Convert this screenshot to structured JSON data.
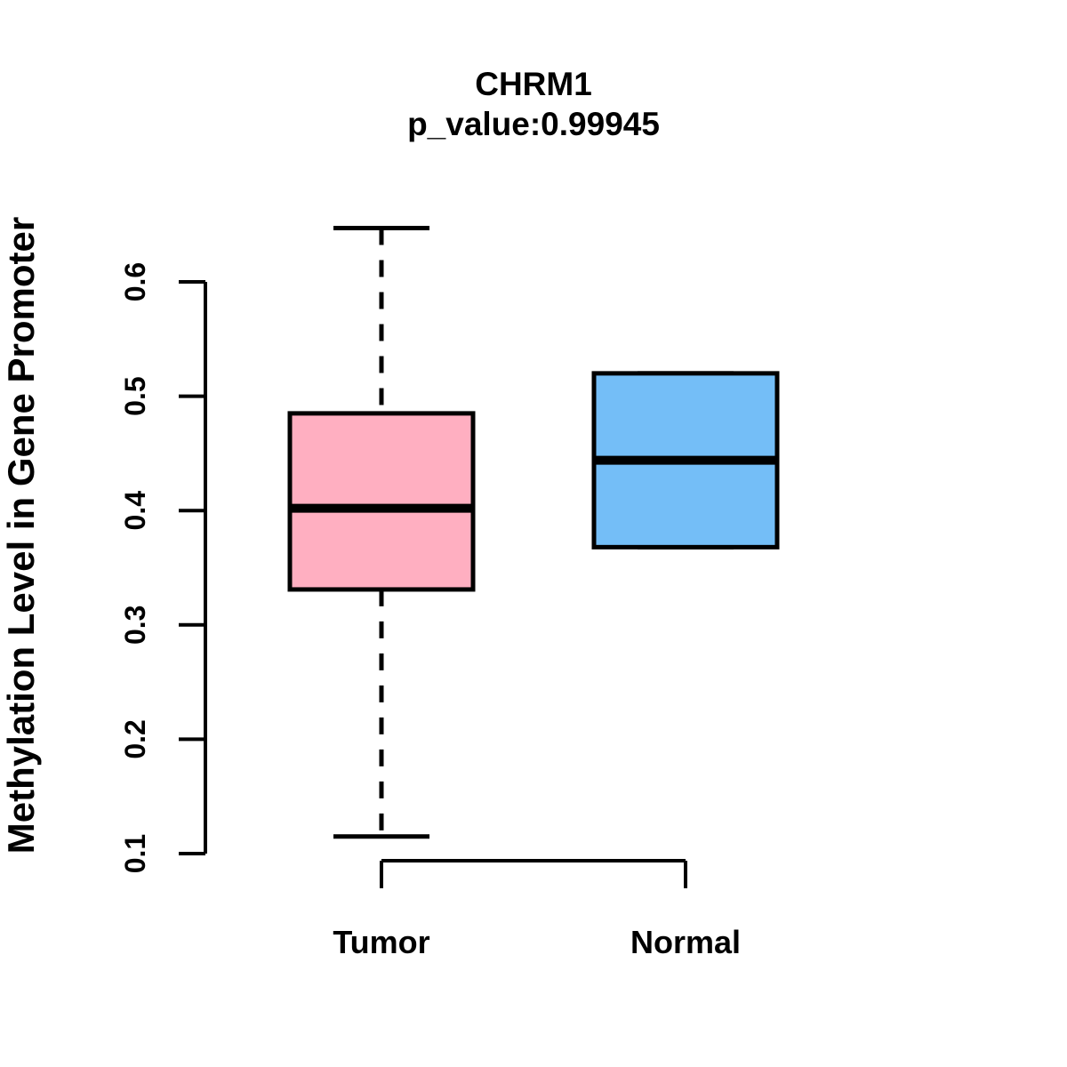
{
  "figure": {
    "background": "#FFFFFF",
    "line_color": "#000000"
  },
  "chart_data": {
    "type": "boxplot",
    "title": "CHRM1",
    "subtitle": "p_value:0.99945",
    "ylabel": "Methylation Level in Gene Promoter",
    "xlabel": "",
    "ylim": [
      0.1,
      0.6
    ],
    "yticks": [
      0.1,
      0.2,
      0.3,
      0.4,
      0.5,
      0.6
    ],
    "ytick_labels": [
      "0.1",
      "0.2",
      "0.3",
      "0.4",
      "0.5",
      "0.6"
    ],
    "categories": [
      "Tumor",
      "Normal"
    ],
    "grid": false,
    "legend": "none",
    "series": [
      {
        "name": "Tumor",
        "fill_color": "#FFAFC1",
        "border_color": "#000000",
        "whisker_low": 0.115,
        "q1": 0.331,
        "median": 0.402,
        "q3": 0.485,
        "whisker_high": 0.647,
        "whisker_style": "dashed"
      },
      {
        "name": "Normal",
        "fill_color": "#74BEF7",
        "border_color": "#000000",
        "whisker_low": 0.368,
        "q1": 0.368,
        "median": 0.444,
        "q3": 0.52,
        "whisker_high": 0.52,
        "whisker_style": "dashed"
      }
    ]
  }
}
